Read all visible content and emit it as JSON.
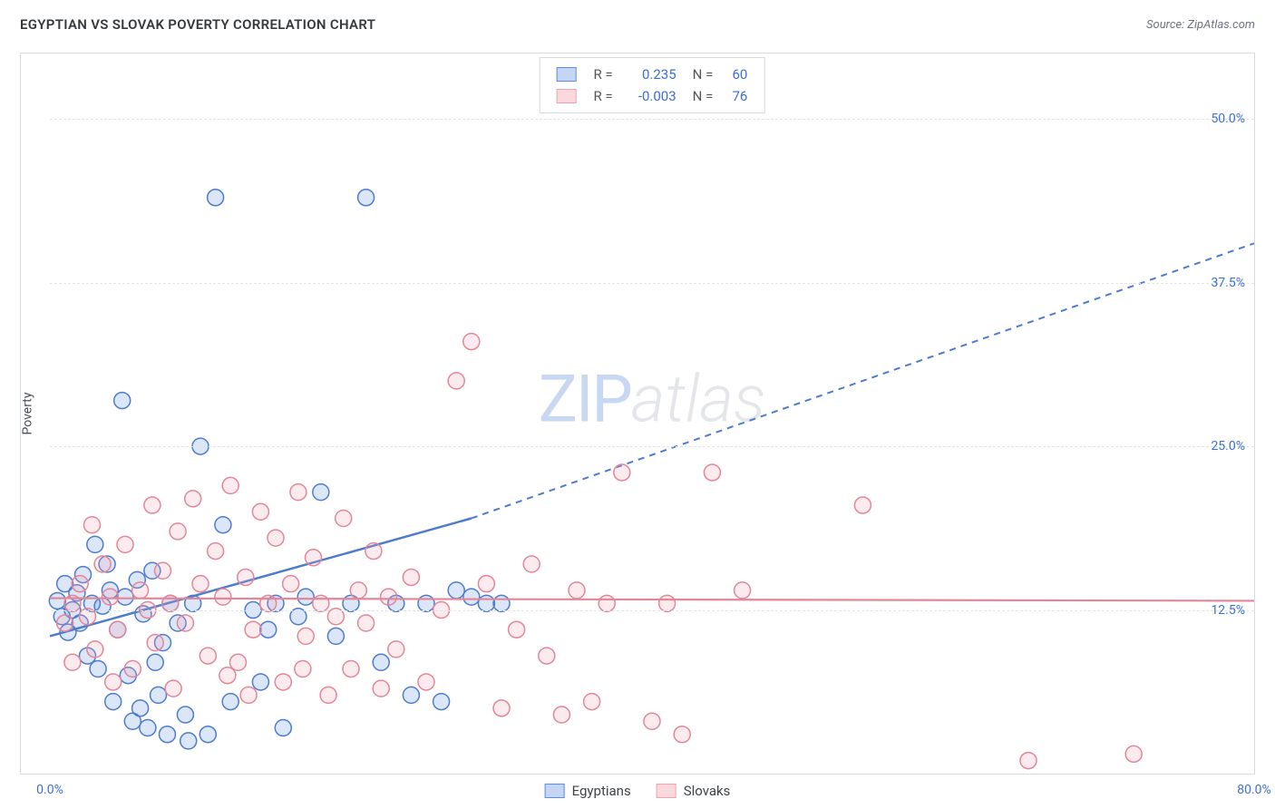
{
  "header": {
    "title": "EGYPTIAN VS SLOVAK POVERTY CORRELATION CHART",
    "source_label": "Source: ZipAtlas.com"
  },
  "chart": {
    "type": "scatter",
    "ylabel": "Poverty",
    "background_color": "#ffffff",
    "grid_color": "#e2e5ea",
    "axis_color": "#d7dbe0",
    "tick_color": "#3b6fd6",
    "tick_fontsize": 14,
    "xlim": [
      0,
      80
    ],
    "ylim": [
      0,
      55
    ],
    "yticks": [
      {
        "v": 12.5,
        "label": "12.5%"
      },
      {
        "v": 25.0,
        "label": "25.0%"
      },
      {
        "v": 37.5,
        "label": "37.5%"
      },
      {
        "v": 50.0,
        "label": "50.0%"
      }
    ],
    "xticks": [
      {
        "v": 0,
        "label": "0.0%"
      },
      {
        "v": 80,
        "label": "80.0%"
      }
    ],
    "marker_radius": 9,
    "marker_stroke_width": 1.5,
    "marker_fill_opacity": 0.22,
    "watermark": {
      "zip": "ZIP",
      "atlas": "atlas"
    },
    "series": [
      {
        "name": "Egyptians",
        "color": "#5b8ede",
        "stroke": "#4d7ccf",
        "R": "0.235",
        "N": "60",
        "trend": {
          "solid": {
            "x1": 0,
            "y1": 10.5,
            "x2": 28,
            "y2": 19.5
          },
          "dashed": {
            "x1": 28,
            "y1": 19.5,
            "x2": 80,
            "y2": 40.5
          },
          "width": 2.5,
          "dash": "7 6"
        },
        "points": [
          [
            0.5,
            13.2
          ],
          [
            0.8,
            12.0
          ],
          [
            1.0,
            14.5
          ],
          [
            1.2,
            10.8
          ],
          [
            1.5,
            12.5
          ],
          [
            1.8,
            13.8
          ],
          [
            2.0,
            11.5
          ],
          [
            2.2,
            15.2
          ],
          [
            2.5,
            9.0
          ],
          [
            2.8,
            13.0
          ],
          [
            3.0,
            17.5
          ],
          [
            3.2,
            8.0
          ],
          [
            3.5,
            12.8
          ],
          [
            3.8,
            16.0
          ],
          [
            4.0,
            14.0
          ],
          [
            4.2,
            5.5
          ],
          [
            4.5,
            11.0
          ],
          [
            4.8,
            28.5
          ],
          [
            5.0,
            13.5
          ],
          [
            5.2,
            7.5
          ],
          [
            5.5,
            4.0
          ],
          [
            5.8,
            14.8
          ],
          [
            6.0,
            5.0
          ],
          [
            6.2,
            12.2
          ],
          [
            6.5,
            3.5
          ],
          [
            6.8,
            15.5
          ],
          [
            7.0,
            8.5
          ],
          [
            7.2,
            6.0
          ],
          [
            7.5,
            10.0
          ],
          [
            7.8,
            3.0
          ],
          [
            8.0,
            13.0
          ],
          [
            8.5,
            11.5
          ],
          [
            9.0,
            4.5
          ],
          [
            9.2,
            2.5
          ],
          [
            9.5,
            13.0
          ],
          [
            10.0,
            25.0
          ],
          [
            10.5,
            3.0
          ],
          [
            11.0,
            44.0
          ],
          [
            11.5,
            19.0
          ],
          [
            12.0,
            5.5
          ],
          [
            13.5,
            12.5
          ],
          [
            14.0,
            7.0
          ],
          [
            14.5,
            11.0
          ],
          [
            15.0,
            13.0
          ],
          [
            15.5,
            3.5
          ],
          [
            16.5,
            12.0
          ],
          [
            17.0,
            13.5
          ],
          [
            18.0,
            21.5
          ],
          [
            19.0,
            10.5
          ],
          [
            20.0,
            13.0
          ],
          [
            21.0,
            44.0
          ],
          [
            22.0,
            8.5
          ],
          [
            23.0,
            13.0
          ],
          [
            24.0,
            6.0
          ],
          [
            25.0,
            13.0
          ],
          [
            26.0,
            5.5
          ],
          [
            27.0,
            14.0
          ],
          [
            28.0,
            13.5
          ],
          [
            29.0,
            13.0
          ],
          [
            30.0,
            13.0
          ]
        ]
      },
      {
        "name": "Slovaks",
        "color": "#f0a2b1",
        "stroke": "#e38698",
        "R": "-0.003",
        "N": "76",
        "trend": {
          "solid": {
            "x1": 0,
            "y1": 13.4,
            "x2": 80,
            "y2": 13.2
          },
          "dashed": null,
          "width": 2.2,
          "dash": null
        },
        "points": [
          [
            1.0,
            11.5
          ],
          [
            1.5,
            13.0
          ],
          [
            2.0,
            14.5
          ],
          [
            2.5,
            12.0
          ],
          [
            3.0,
            9.5
          ],
          [
            3.5,
            16.0
          ],
          [
            4.0,
            13.5
          ],
          [
            4.5,
            11.0
          ],
          [
            5.0,
            17.5
          ],
          [
            5.5,
            8.0
          ],
          [
            6.0,
            14.0
          ],
          [
            6.5,
            12.5
          ],
          [
            7.0,
            10.0
          ],
          [
            7.5,
            15.5
          ],
          [
            8.0,
            13.0
          ],
          [
            8.5,
            18.5
          ],
          [
            9.0,
            11.5
          ],
          [
            9.5,
            21.0
          ],
          [
            10.0,
            14.5
          ],
          [
            10.5,
            9.0
          ],
          [
            11.0,
            17.0
          ],
          [
            11.5,
            13.5
          ],
          [
            12.0,
            22.0
          ],
          [
            12.5,
            8.5
          ],
          [
            13.0,
            15.0
          ],
          [
            13.5,
            11.0
          ],
          [
            14.0,
            20.0
          ],
          [
            14.5,
            13.0
          ],
          [
            15.0,
            18.0
          ],
          [
            15.5,
            7.0
          ],
          [
            16.0,
            14.5
          ],
          [
            16.5,
            21.5
          ],
          [
            17.0,
            10.5
          ],
          [
            17.5,
            16.5
          ],
          [
            18.0,
            13.0
          ],
          [
            18.5,
            6.0
          ],
          [
            19.0,
            12.0
          ],
          [
            19.5,
            19.5
          ],
          [
            20.0,
            8.0
          ],
          [
            20.5,
            14.0
          ],
          [
            21.0,
            11.5
          ],
          [
            21.5,
            17.0
          ],
          [
            22.0,
            6.5
          ],
          [
            22.5,
            13.5
          ],
          [
            23.0,
            9.5
          ],
          [
            24.0,
            15.0
          ],
          [
            25.0,
            7.0
          ],
          [
            26.0,
            12.5
          ],
          [
            27.0,
            30.0
          ],
          [
            28.0,
            33.0
          ],
          [
            29.0,
            14.5
          ],
          [
            30.0,
            5.0
          ],
          [
            31.0,
            11.0
          ],
          [
            32.0,
            16.0
          ],
          [
            33.0,
            9.0
          ],
          [
            34.0,
            4.5
          ],
          [
            35.0,
            14.0
          ],
          [
            36.0,
            5.5
          ],
          [
            37.0,
            13.0
          ],
          [
            38.0,
            23.0
          ],
          [
            40.0,
            4.0
          ],
          [
            41.0,
            13.0
          ],
          [
            42.0,
            3.0
          ],
          [
            44.0,
            23.0
          ],
          [
            46.0,
            14.0
          ],
          [
            54.0,
            20.5
          ],
          [
            65.0,
            1.0
          ],
          [
            72.0,
            1.5
          ],
          [
            1.5,
            8.5
          ],
          [
            2.8,
            19.0
          ],
          [
            4.2,
            7.0
          ],
          [
            6.8,
            20.5
          ],
          [
            8.2,
            6.5
          ],
          [
            11.8,
            7.5
          ],
          [
            13.2,
            6.0
          ],
          [
            16.8,
            8.0
          ]
        ]
      }
    ],
    "bottom_legend": [
      {
        "label": "Egyptians",
        "fill": "#c4d6f4",
        "stroke": "#5b8ede"
      },
      {
        "label": "Slovaks",
        "fill": "#fbd7de",
        "stroke": "#f0a2b1"
      }
    ],
    "top_legend": [
      {
        "fill": "#c4d6f4",
        "stroke": "#5b8ede"
      },
      {
        "fill": "#fbd7de",
        "stroke": "#f0a2b1"
      }
    ],
    "legend_labels": {
      "R": "R =",
      "N": "N ="
    }
  }
}
